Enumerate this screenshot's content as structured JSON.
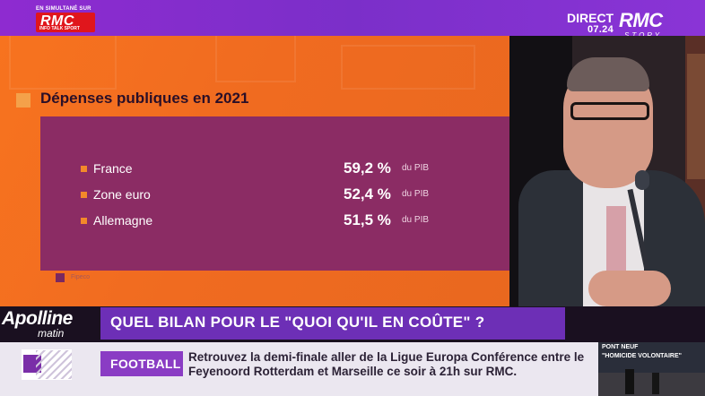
{
  "header": {
    "simulcast_text": "EN SIMULTANÉ SUR",
    "channel_logo_big": "RMC",
    "channel_logo_small": "INFO TALK SPORT",
    "direct_label": "DIRECT",
    "time": "07.24",
    "brand_big": "RMC",
    "brand_small": "STORY"
  },
  "graphic": {
    "title": "Dépenses publiques en 2021",
    "rows": [
      {
        "label": "France",
        "value": "59,2 %",
        "unit": "du PIB"
      },
      {
        "label": "Zone euro",
        "value": "52,4 %",
        "unit": "du PIB"
      },
      {
        "label": "Allemagne",
        "value": "51,5 %",
        "unit": "du PIB"
      }
    ],
    "source": "Fipeco"
  },
  "show": {
    "name": "Apolline",
    "subtitle": "matin"
  },
  "question": "QUEL BILAN POUR LE \"QUOI QU'IL EN COÛTE\" ?",
  "ticker": {
    "category": "FOOTBALL",
    "line1": "Retrouvez la demi-finale aller de la Ligue Europa Conférence entre le",
    "line2": "Feyenoord Rotterdam et Marseille ce soir à 21h sur RMC."
  },
  "thumbnail": {
    "line1": "PONT NEUF",
    "line2": "\"HOMICIDE VOLONTAIRE\""
  },
  "colors": {
    "topbar": "#7b2fc9",
    "graphic_bg": "#f06b20",
    "panel": "#8b2c64",
    "question_bar": "#6d2fb6",
    "ticker_category": "#8a3cc4",
    "logo_red": "#e0161c"
  }
}
